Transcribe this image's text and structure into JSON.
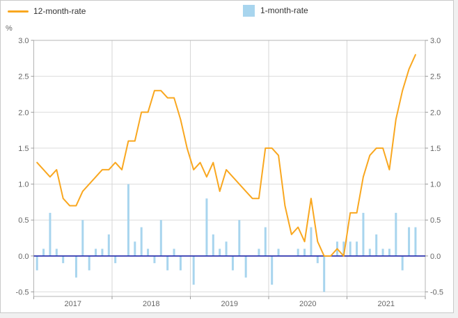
{
  "legend": {
    "items": [
      {
        "label": "12-month-rate",
        "swatch": "line"
      },
      {
        "label": "1-month-rate",
        "swatch": "square"
      }
    ]
  },
  "axis": {
    "unit_label": "%",
    "y_tick_labels": [
      "3.0",
      "2.5",
      "2.0",
      "1.5",
      "1.0",
      "0.5",
      "0.0",
      "-0.5"
    ],
    "x_tick_labels": [
      "2017",
      "2018",
      "2019",
      "2020",
      "2021"
    ]
  },
  "colors": {
    "line": "#f9a71f",
    "bar": "#a8d5ee",
    "zero_line": "#2e34ae",
    "grid": "#dcdcdc",
    "grid_vertical": "#d6d6d6",
    "frame": "#b4b4b4",
    "tick": "#9a9a9a",
    "axis_text": "#666666",
    "legend_text": "#333333"
  },
  "chart_data": {
    "type": "line",
    "title": "",
    "ylabel": "%",
    "ylim": [
      -0.5,
      3.0
    ],
    "y_tick_step": 0.5,
    "grid": true,
    "legend_position": "top",
    "x_year_labels": [
      "2017",
      "2018",
      "2019",
      "2020",
      "2021"
    ],
    "x": [
      "2017-01",
      "2017-02",
      "2017-03",
      "2017-04",
      "2017-05",
      "2017-06",
      "2017-07",
      "2017-08",
      "2017-09",
      "2017-10",
      "2017-11",
      "2017-12",
      "2018-01",
      "2018-02",
      "2018-03",
      "2018-04",
      "2018-05",
      "2018-06",
      "2018-07",
      "2018-08",
      "2018-09",
      "2018-10",
      "2018-11",
      "2018-12",
      "2019-01",
      "2019-02",
      "2019-03",
      "2019-04",
      "2019-05",
      "2019-06",
      "2019-07",
      "2019-08",
      "2019-09",
      "2019-10",
      "2019-11",
      "2019-12",
      "2020-01",
      "2020-02",
      "2020-03",
      "2020-04",
      "2020-05",
      "2020-06",
      "2020-07",
      "2020-08",
      "2020-09",
      "2020-10",
      "2020-11",
      "2020-12",
      "2021-01",
      "2021-02",
      "2021-03",
      "2021-04",
      "2021-05",
      "2021-06",
      "2021-07",
      "2021-08",
      "2021-09",
      "2021-10",
      "2021-11"
    ],
    "series": [
      {
        "name": "12-month-rate",
        "type": "line",
        "values": [
          1.3,
          1.2,
          1.1,
          1.2,
          0.8,
          0.7,
          0.7,
          0.9,
          1.0,
          1.1,
          1.2,
          1.2,
          1.3,
          1.2,
          1.6,
          1.6,
          2.0,
          2.0,
          2.3,
          2.3,
          2.2,
          2.2,
          1.9,
          1.5,
          1.2,
          1.3,
          1.1,
          1.3,
          0.9,
          1.2,
          1.1,
          1.0,
          0.9,
          0.8,
          0.8,
          1.5,
          1.5,
          1.4,
          0.7,
          0.3,
          0.4,
          0.2,
          0.8,
          0.2,
          0.0,
          0.0,
          0.1,
          0.0,
          0.6,
          0.6,
          1.1,
          1.4,
          1.5,
          1.5,
          1.2,
          1.9,
          2.3,
          2.6,
          2.8
        ]
      },
      {
        "name": "1-month-rate",
        "type": "bar",
        "values": [
          -0.2,
          0.1,
          0.6,
          0.1,
          -0.1,
          0.0,
          -0.3,
          0.5,
          -0.2,
          0.1,
          0.1,
          0.3,
          -0.1,
          0.0,
          1.0,
          0.2,
          0.4,
          0.1,
          -0.1,
          0.5,
          -0.2,
          0.1,
          -0.2,
          0.0,
          -0.4,
          0.0,
          0.8,
          0.3,
          0.1,
          0.2,
          -0.2,
          0.5,
          -0.3,
          0.0,
          0.1,
          0.4,
          -0.4,
          0.1,
          0.0,
          0.0,
          0.1,
          0.1,
          0.4,
          -0.1,
          -0.5,
          0.0,
          0.2,
          0.2,
          0.2,
          0.2,
          0.6,
          0.1,
          0.3,
          0.1,
          0.1,
          0.6,
          -0.2,
          0.4,
          0.4
        ]
      }
    ]
  }
}
